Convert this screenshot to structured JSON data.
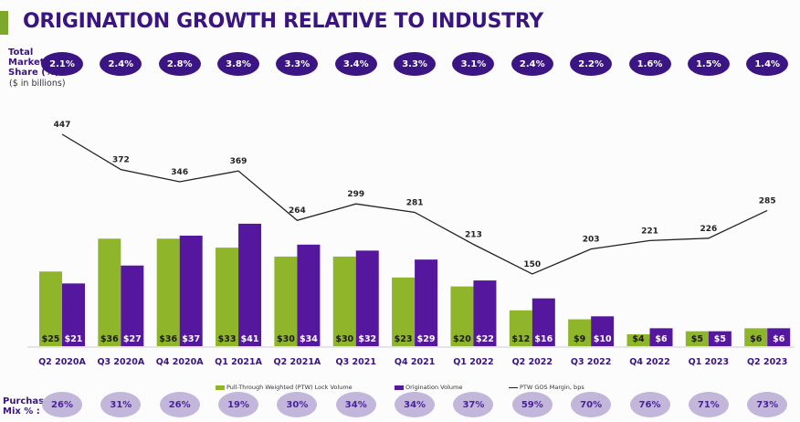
{
  "title": "ORIGINATION GROWTH RELATIVE TO INDUSTRY",
  "labels": {
    "market_share": [
      "Total",
      "Market",
      "Share (%)"
    ],
    "units": "($ in billions)",
    "purchase_mix": [
      "Purchase",
      "Mix % :"
    ]
  },
  "colors": {
    "ptw": "#8fb52a",
    "origination": "#56179f",
    "line": "#222222",
    "title": "#3a1480",
    "accent_bar": "#7ea82b"
  },
  "market_share": [
    "2.1%",
    "2.4%",
    "2.8%",
    "3.8%",
    "3.3%",
    "3.4%",
    "3.3%",
    "3.1%",
    "2.4%",
    "2.2%",
    "1.6%",
    "1.5%",
    "1.4%"
  ],
  "purchase_mix": [
    "26%",
    "31%",
    "26%",
    "19%",
    "30%",
    "34%",
    "34%",
    "37%",
    "59%",
    "70%",
    "76%",
    "71%",
    "73%"
  ],
  "legend": {
    "ptw": "Pull-Through Weighted (PTW) Lock Volume",
    "origination": "Origination Volume",
    "margin": "PTW GOS Margin, bps"
  },
  "chart_data": {
    "type": "bar",
    "title": "ORIGINATION GROWTH RELATIVE TO INDUSTRY",
    "xlabel": "",
    "ylabel": "$ in billions",
    "categories": [
      "Q2 2020A",
      "Q3 2020A",
      "Q4 2020A",
      "Q1 2021A",
      "Q2 2021A",
      "Q3 2021",
      "Q4 2021",
      "Q1 2022",
      "Q2 2022",
      "Q3 2022",
      "Q4 2022",
      "Q1 2023",
      "Q2 2023"
    ],
    "series": [
      {
        "name": "Pull-Through Weighted (PTW) Lock Volume",
        "type": "bar",
        "values": [
          25,
          36,
          36,
          33,
          30,
          30,
          23,
          20,
          12,
          9,
          4,
          5,
          6
        ],
        "labels": [
          "$25",
          "$36",
          "$36",
          "$33",
          "$30",
          "$30",
          "$23",
          "$20",
          "$12",
          "$9",
          "$4",
          "$5",
          "$6"
        ]
      },
      {
        "name": "Origination Volume",
        "type": "bar",
        "values": [
          21,
          27,
          37,
          41,
          34,
          32,
          29,
          22,
          16,
          10,
          6,
          5,
          6
        ],
        "labels": [
          "$21",
          "$27",
          "$37",
          "$41",
          "$34",
          "$32",
          "$29",
          "$22",
          "$16",
          "$10",
          "$6",
          "$5",
          "$6"
        ]
      },
      {
        "name": "PTW GOS Margin, bps",
        "type": "line",
        "values": [
          447,
          372,
          346,
          369,
          264,
          299,
          281,
          213,
          150,
          203,
          221,
          226,
          285
        ]
      }
    ],
    "ylim": [
      0,
      45
    ],
    "y2lim": [
      0,
      500
    ],
    "grid": false,
    "legend": "bottom"
  }
}
